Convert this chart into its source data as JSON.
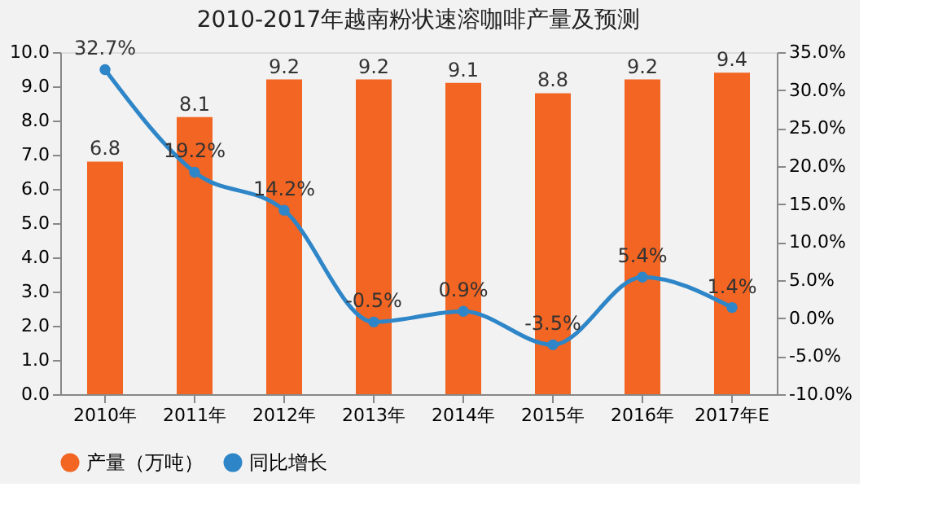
{
  "chart_data": {
    "type": "bar",
    "title": "2010-2017年越南粉状速溶咖啡产量及预测",
    "categories": [
      "2010年",
      "2011年",
      "2012年",
      "2013年",
      "2014年",
      "2015年",
      "2016年",
      "2017年E"
    ],
    "series": [
      {
        "name": "产量（万吨）",
        "color": "#f26522",
        "values": [
          6.8,
          8.1,
          9.2,
          9.2,
          9.1,
          8.8,
          9.2,
          9.4
        ]
      },
      {
        "name": "同比增长",
        "type": "line",
        "axis": "y2",
        "color": "#2e86c8",
        "marker": "circle",
        "values": [
          32.7,
          19.2,
          14.2,
          -0.5,
          0.9,
          -3.5,
          5.4,
          1.4
        ],
        "value_labels": [
          "32.7%",
          "19.2%",
          "14.2%",
          "-0.5%",
          "0.9%",
          "-3.5%",
          "5.4%",
          "1.4%"
        ]
      }
    ],
    "data_labels": true,
    "ylim": [
      0,
      10
    ],
    "yticks": [
      {
        "value": 0,
        "label": "0.0"
      },
      {
        "value": 1,
        "label": "1.0"
      },
      {
        "value": 2,
        "label": "2.0"
      },
      {
        "value": 3,
        "label": "3.0"
      },
      {
        "value": 4,
        "label": "4.0"
      },
      {
        "value": 5,
        "label": "5.0"
      },
      {
        "value": 6,
        "label": "6.0"
      },
      {
        "value": 7,
        "label": "7.0"
      },
      {
        "value": 8,
        "label": "8.0"
      },
      {
        "value": 9,
        "label": "9.0"
      },
      {
        "value": 10,
        "label": "10.0"
      }
    ],
    "y2lim": [
      -10,
      35
    ],
    "y2ticks": [
      {
        "value": -10,
        "label": "-10.0%"
      },
      {
        "value": -5,
        "label": "-5.0%"
      },
      {
        "value": 0,
        "label": "0.0%"
      },
      {
        "value": 5,
        "label": "5.0%"
      },
      {
        "value": 10,
        "label": "10.0%"
      },
      {
        "value": 15,
        "label": "15.0%"
      },
      {
        "value": 20,
        "label": "20.0%"
      },
      {
        "value": 25,
        "label": "25.0%"
      },
      {
        "value": 30,
        "label": "30.0%"
      },
      {
        "value": 35,
        "label": "35.0%"
      }
    ],
    "grid": false,
    "legend": "bottom"
  }
}
